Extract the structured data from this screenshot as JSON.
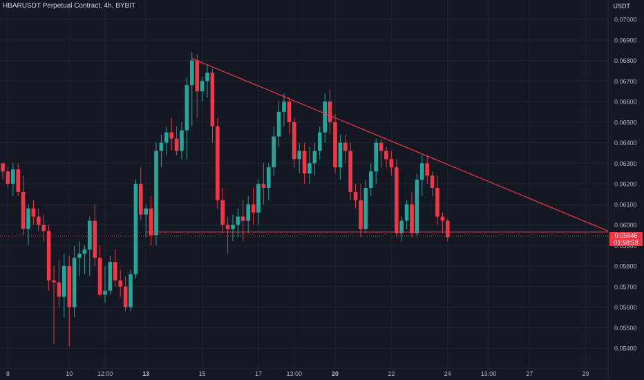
{
  "header": {
    "symbol": "HBARUSDT Perpetual Contract, 4h, BYBIT",
    "quote_unit": "USDT"
  },
  "last_price": {
    "value": "0.05946",
    "countdown": "01:58:59"
  },
  "colors": {
    "background": "#141823",
    "up": "#26a69a",
    "down": "#f23645",
    "grid": "#1f2430",
    "axis_text": "#b2b5be",
    "trendline": "#f23645",
    "support": "#f23645"
  },
  "chart_data": {
    "type": "candlestick",
    "title": "HBARUSDT Perpetual Contract, 4h, BYBIT",
    "xlabel": "",
    "ylabel": "USDT",
    "ylim": [
      0.0534,
      0.071
    ],
    "y_ticks": [
      "0.07000",
      "0.06900",
      "0.06800",
      "0.06700",
      "0.06600",
      "0.06500",
      "0.06400",
      "0.06300",
      "0.06200",
      "0.06100",
      "0.06000",
      "0.05900",
      "0.05800",
      "0.05700",
      "0.05600",
      "0.05500",
      "0.05400"
    ],
    "x_ticks": [
      {
        "label": "8",
        "bar": 1
      },
      {
        "label": "10",
        "bar": 13
      },
      {
        "label": "12:00",
        "bar": 20
      },
      {
        "label": "13",
        "bar": 28
      },
      {
        "label": "15",
        "bar": 39
      },
      {
        "label": "17",
        "bar": 50
      },
      {
        "label": "13:00",
        "bar": 57
      },
      {
        "label": "20",
        "bar": 65
      },
      {
        "label": "22",
        "bar": 76
      },
      {
        "label": "24",
        "bar": 87
      },
      {
        "label": "13:00",
        "bar": 95
      },
      {
        "label": "27",
        "bar": 103
      },
      {
        "label": "29",
        "bar": 114
      }
    ],
    "candles": [
      [
        0.063,
        0.063,
        0.0622,
        0.0626
      ],
      [
        0.0626,
        0.0628,
        0.0618,
        0.062
      ],
      [
        0.062,
        0.063,
        0.0614,
        0.0627
      ],
      [
        0.0627,
        0.063,
        0.0614,
        0.0616
      ],
      [
        0.0616,
        0.0624,
        0.0595,
        0.0598
      ],
      [
        0.0598,
        0.061,
        0.059,
        0.0608
      ],
      [
        0.0608,
        0.0612,
        0.06,
        0.0604
      ],
      [
        0.0604,
        0.0608,
        0.0597,
        0.06
      ],
      [
        0.06,
        0.0605,
        0.0592,
        0.0597
      ],
      [
        0.0597,
        0.06,
        0.0568,
        0.0573
      ],
      [
        0.0573,
        0.058,
        0.0542,
        0.0572
      ],
      [
        0.0572,
        0.0583,
        0.056,
        0.0565
      ],
      [
        0.0565,
        0.0586,
        0.0555,
        0.058
      ],
      [
        0.058,
        0.0585,
        0.0541,
        0.056
      ],
      [
        0.056,
        0.059,
        0.0555,
        0.0584
      ],
      [
        0.0584,
        0.0592,
        0.0575,
        0.0586
      ],
      [
        0.0586,
        0.059,
        0.0576,
        0.0588
      ],
      [
        0.0588,
        0.0604,
        0.0575,
        0.0602
      ],
      [
        0.0602,
        0.061,
        0.058,
        0.0584
      ],
      [
        0.0584,
        0.059,
        0.0565,
        0.0566
      ],
      [
        0.0566,
        0.058,
        0.0562,
        0.0568
      ],
      [
        0.0568,
        0.0585,
        0.0566,
        0.0582
      ],
      [
        0.0582,
        0.0588,
        0.057,
        0.0573
      ],
      [
        0.0573,
        0.0578,
        0.0565,
        0.057
      ],
      [
        0.057,
        0.0575,
        0.0558,
        0.056
      ],
      [
        0.056,
        0.0578,
        0.0558,
        0.0576
      ],
      [
        0.0576,
        0.0622,
        0.0574,
        0.062
      ],
      [
        0.062,
        0.0628,
        0.0602,
        0.0605
      ],
      [
        0.0605,
        0.061,
        0.0594,
        0.0608
      ],
      [
        0.0608,
        0.0614,
        0.059,
        0.0595
      ],
      [
        0.0595,
        0.064,
        0.059,
        0.0636
      ],
      [
        0.0636,
        0.0644,
        0.0628,
        0.064
      ],
      [
        0.064,
        0.0648,
        0.0634,
        0.0645
      ],
      [
        0.0645,
        0.0652,
        0.0636,
        0.0642
      ],
      [
        0.0642,
        0.0648,
        0.0634,
        0.0636
      ],
      [
        0.0636,
        0.065,
        0.0632,
        0.0646
      ],
      [
        0.0646,
        0.0672,
        0.0632,
        0.0668
      ],
      [
        0.0668,
        0.0684,
        0.0648,
        0.068
      ],
      [
        0.068,
        0.0683,
        0.0652,
        0.0665
      ],
      [
        0.0665,
        0.0672,
        0.066,
        0.067
      ],
      [
        0.067,
        0.0678,
        0.0662,
        0.0674
      ],
      [
        0.0674,
        0.0676,
        0.064,
        0.0648
      ],
      [
        0.0648,
        0.0652,
        0.0608,
        0.0612
      ],
      [
        0.0612,
        0.0618,
        0.0596,
        0.06
      ],
      [
        0.06,
        0.0604,
        0.0586,
        0.0598
      ],
      [
        0.0598,
        0.0605,
        0.0592,
        0.06
      ],
      [
        0.06,
        0.0608,
        0.0594,
        0.0604
      ],
      [
        0.0604,
        0.0612,
        0.0592,
        0.0602
      ],
      [
        0.0602,
        0.0614,
        0.0596,
        0.061
      ],
      [
        0.061,
        0.0618,
        0.06,
        0.0606
      ],
      [
        0.0606,
        0.0622,
        0.06,
        0.062
      ],
      [
        0.062,
        0.063,
        0.061,
        0.0618
      ],
      [
        0.0618,
        0.063,
        0.0612,
        0.0628
      ],
      [
        0.0628,
        0.0648,
        0.0624,
        0.0643
      ],
      [
        0.0643,
        0.066,
        0.0638,
        0.0655
      ],
      [
        0.0655,
        0.0664,
        0.0648,
        0.066
      ],
      [
        0.066,
        0.0662,
        0.0644,
        0.065
      ],
      [
        0.065,
        0.0652,
        0.0628,
        0.0632
      ],
      [
        0.0632,
        0.064,
        0.0625,
        0.0636
      ],
      [
        0.0636,
        0.064,
        0.062,
        0.0625
      ],
      [
        0.0625,
        0.0638,
        0.062,
        0.063
      ],
      [
        0.063,
        0.064,
        0.0624,
        0.0636
      ],
      [
        0.0636,
        0.0648,
        0.0632,
        0.0645
      ],
      [
        0.0645,
        0.0664,
        0.064,
        0.066
      ],
      [
        0.066,
        0.0666,
        0.0644,
        0.065
      ],
      [
        0.065,
        0.0654,
        0.0625,
        0.0628
      ],
      [
        0.0628,
        0.0644,
        0.0622,
        0.064
      ],
      [
        0.064,
        0.0644,
        0.063,
        0.0636
      ],
      [
        0.0636,
        0.064,
        0.0612,
        0.0616
      ],
      [
        0.0616,
        0.062,
        0.0608,
        0.0612
      ],
      [
        0.0612,
        0.062,
        0.0594,
        0.0598
      ],
      [
        0.0598,
        0.0622,
        0.0596,
        0.0618
      ],
      [
        0.0618,
        0.063,
        0.0614,
        0.0626
      ],
      [
        0.0626,
        0.0642,
        0.062,
        0.064
      ],
      [
        0.064,
        0.0642,
        0.0628,
        0.0636
      ],
      [
        0.0636,
        0.0638,
        0.0628,
        0.0632
      ],
      [
        0.0632,
        0.0636,
        0.0624,
        0.0628
      ],
      [
        0.0628,
        0.0632,
        0.0594,
        0.0596
      ],
      [
        0.0596,
        0.0604,
        0.0592,
        0.0602
      ],
      [
        0.0602,
        0.0612,
        0.0598,
        0.061
      ],
      [
        0.061,
        0.0616,
        0.0594,
        0.0596
      ],
      [
        0.0596,
        0.0625,
        0.0594,
        0.0622
      ],
      [
        0.0622,
        0.0634,
        0.0614,
        0.063
      ],
      [
        0.063,
        0.0634,
        0.062,
        0.0624
      ],
      [
        0.0624,
        0.0626,
        0.0614,
        0.0618
      ],
      [
        0.0618,
        0.0624,
        0.06,
        0.0604
      ],
      [
        0.0604,
        0.0606,
        0.0596,
        0.0602
      ],
      [
        0.0602,
        0.0603,
        0.0592,
        0.0594
      ]
    ],
    "trendline": {
      "start_bar": 37,
      "start_price": 0.0681,
      "end_bar": 122,
      "end_price": 0.0597
    },
    "support_line": {
      "start_bar": 28,
      "price": 0.05965
    },
    "last_price_line": 0.05946
  }
}
